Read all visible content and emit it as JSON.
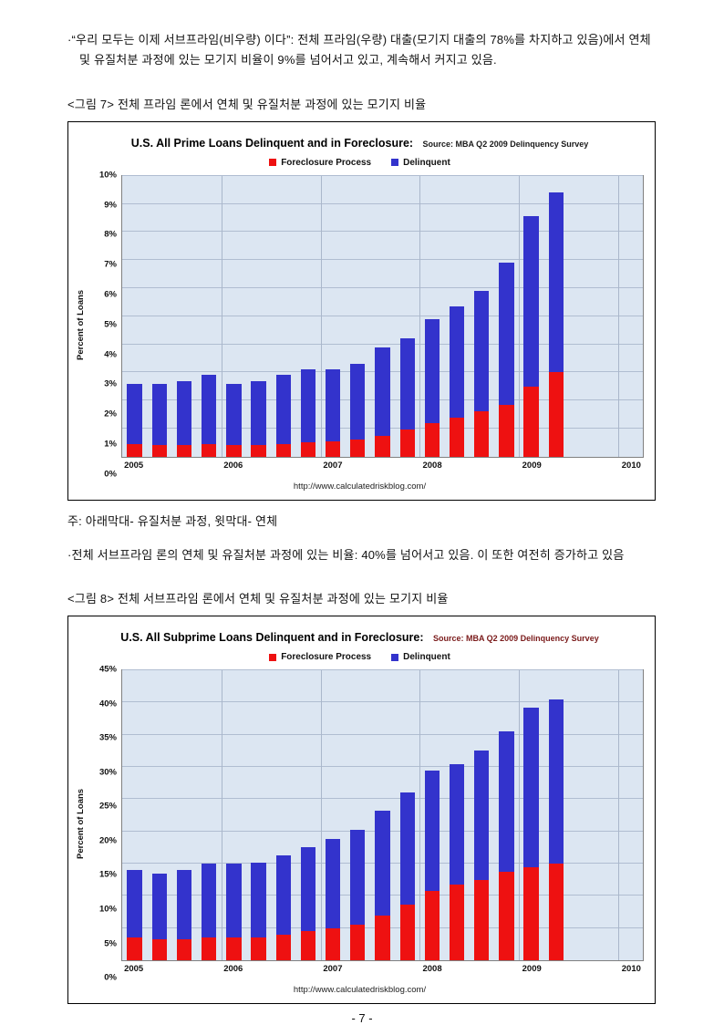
{
  "page": {
    "bullet1": "·“우리 모두는 이제 서브프라임(비우량) 이다”: 전체 프라임(우량) 대출(모기지 대출의 78%를 차지하고 있음)에서 연체 및 유질처분 과정에 있는 모기지 비율이 9%를 넘어서고 있고, 계속해서 커지고 있음.",
    "fig7_caption": "<그림 7> 전체 프라임 론에서 연체 및 유질처분 과정에 있는 모기지 비율",
    "note": "주: 아래막대- 유질처분 과정, 윗막대- 연체",
    "bullet2": "·전체 서브프라임 론의 연체 및 유질처분 과정에 있는 비율: 40%를 넘어서고 있음.  이 또한 여전히 증가하고 있음",
    "fig8_caption": "<그림 8> 전체 서브프라임 론에서 연체 및 유질처분 과정에 있는 모기지 비율",
    "page_number": "- 7 -"
  },
  "chart_data": [
    {
      "type": "bar",
      "stacked": true,
      "title": "U.S. All Prime Loans Delinquent and in Foreclosure:",
      "source": "Source: MBA Q2 2009 Delinquency Survey",
      "source_color": "#1a1a1a",
      "ylabel": "Percent of Loans",
      "ylim": [
        0,
        10
      ],
      "ystep": 1,
      "x_year_labels": [
        "2005",
        "2006",
        "2007",
        "2008",
        "2009",
        "2010"
      ],
      "total_slots": 21,
      "url": "http://www.calculatedriskblog.com/",
      "quarters": [
        "2005 Q1",
        "2005 Q2",
        "2005 Q3",
        "2005 Q4",
        "2006 Q1",
        "2006 Q2",
        "2006 Q3",
        "2006 Q4",
        "2007 Q1",
        "2007 Q2",
        "2007 Q3",
        "2007 Q4",
        "2008 Q1",
        "2008 Q2",
        "2008 Q3",
        "2008 Q4",
        "2009 Q1",
        "2009 Q2"
      ],
      "series": [
        {
          "name": "Foreclosure Process",
          "color": "#ee1111",
          "values": [
            0.45,
            0.4,
            0.4,
            0.45,
            0.4,
            0.4,
            0.45,
            0.5,
            0.55,
            0.6,
            0.75,
            0.95,
            1.2,
            1.4,
            1.6,
            1.85,
            2.5,
            3.0
          ]
        },
        {
          "name": "Delinquent",
          "color": "#3333cc",
          "values": [
            2.15,
            2.2,
            2.3,
            2.45,
            2.2,
            2.3,
            2.45,
            2.6,
            2.55,
            2.7,
            3.15,
            3.25,
            3.7,
            3.95,
            4.3,
            5.05,
            6.05,
            6.4
          ]
        }
      ],
      "legend_position": "top",
      "grid": true
    },
    {
      "type": "bar",
      "stacked": true,
      "title": "U.S. All Subprime Loans Delinquent and in Foreclosure:",
      "source": "Source: MBA Q2 2009 Delinquency Survey",
      "source_color": "#7a1a1a",
      "ylabel": "Percent of Loans",
      "ylim": [
        0,
        45
      ],
      "ystep": 5,
      "x_year_labels": [
        "2005",
        "2006",
        "2007",
        "2008",
        "2009",
        "2010"
      ],
      "total_slots": 21,
      "url": "http://www.calculatedriskblog.com/",
      "quarters": [
        "2005 Q1",
        "2005 Q2",
        "2005 Q3",
        "2005 Q4",
        "2006 Q1",
        "2006 Q2",
        "2006 Q3",
        "2006 Q4",
        "2007 Q1",
        "2007 Q2",
        "2007 Q3",
        "2007 Q4",
        "2008 Q1",
        "2008 Q2",
        "2008 Q3",
        "2008 Q4",
        "2009 Q1",
        "2009 Q2"
      ],
      "series": [
        {
          "name": "Foreclosure Process",
          "color": "#ee1111",
          "values": [
            3.5,
            3.3,
            3.3,
            3.5,
            3.5,
            3.5,
            4.0,
            4.5,
            5.0,
            5.5,
            6.9,
            8.7,
            10.7,
            11.8,
            12.5,
            13.7,
            14.5,
            15.0
          ]
        },
        {
          "name": "Delinquent",
          "color": "#3333cc",
          "values": [
            10.5,
            10.2,
            10.7,
            11.5,
            11.5,
            11.7,
            12.3,
            13.1,
            13.8,
            14.8,
            16.3,
            17.3,
            18.8,
            18.7,
            20.0,
            21.9,
            24.7,
            25.5
          ]
        }
      ],
      "legend_position": "top",
      "grid": true
    }
  ]
}
